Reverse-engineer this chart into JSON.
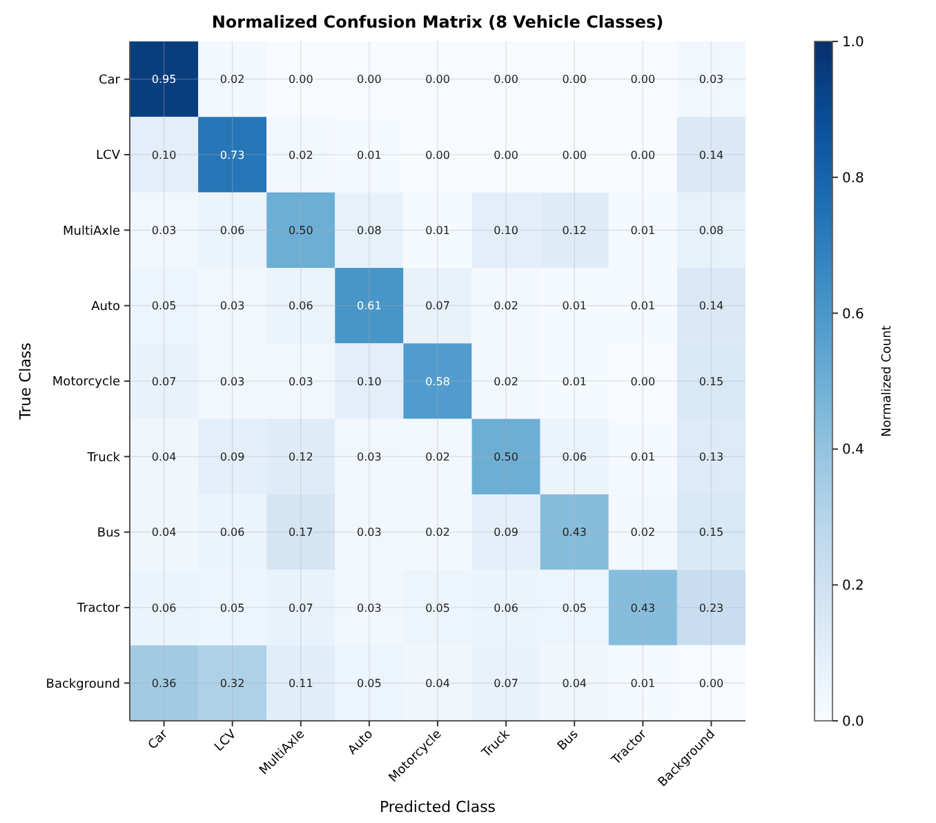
{
  "chart_data": {
    "type": "heatmap",
    "title": "Normalized Confusion Matrix (8 Vehicle Classes)",
    "xlabel": "Predicted Class",
    "ylabel": "True Class",
    "clabel": "Normalized Count",
    "categories": [
      "Car",
      "LCV",
      "MultiAxle",
      "Auto",
      "Motorcycle",
      "Truck",
      "Bus",
      "Tractor",
      "Background"
    ],
    "y_categories": [
      "Car",
      "LCV",
      "MultiAxle",
      "Auto",
      "Motorcycle",
      "Truck",
      "Bus",
      "Tractor",
      "Background"
    ],
    "cells": [
      [
        0.95,
        0.02,
        0.0,
        0.0,
        0.0,
        0.0,
        0.0,
        0.0,
        0.03
      ],
      [
        0.1,
        0.73,
        0.02,
        0.01,
        0.0,
        0.0,
        0.0,
        0.0,
        0.14
      ],
      [
        0.03,
        0.06,
        0.5,
        0.08,
        0.01,
        0.1,
        0.12,
        0.01,
        0.08
      ],
      [
        0.05,
        0.03,
        0.06,
        0.61,
        0.07,
        0.02,
        0.01,
        0.01,
        0.14
      ],
      [
        0.07,
        0.03,
        0.03,
        0.1,
        0.58,
        0.02,
        0.01,
        0.0,
        0.15
      ],
      [
        0.04,
        0.09,
        0.12,
        0.03,
        0.02,
        0.5,
        0.06,
        0.01,
        0.13
      ],
      [
        0.04,
        0.06,
        0.17,
        0.03,
        0.02,
        0.09,
        0.43,
        0.02,
        0.15
      ],
      [
        0.06,
        0.05,
        0.07,
        0.03,
        0.05,
        0.06,
        0.05,
        0.43,
        0.23
      ],
      [
        0.36,
        0.32,
        0.11,
        0.05,
        0.04,
        0.07,
        0.04,
        0.01,
        0.0
      ]
    ],
    "cell_labels": [
      [
        "0.95",
        "0.02",
        "0.00",
        "0.00",
        "0.00",
        "0.00",
        "0.00",
        "0.00",
        "0.03"
      ],
      [
        "0.10",
        "0.73",
        "0.02",
        "0.01",
        "0.00",
        "0.00",
        "0.00",
        "0.00",
        "0.14"
      ],
      [
        "0.03",
        "0.06",
        "0.50",
        "0.08",
        "0.01",
        "0.10",
        "0.12",
        "0.01",
        "0.08"
      ],
      [
        "0.05",
        "0.03",
        "0.06",
        "0.61",
        "0.07",
        "0.02",
        "0.01",
        "0.01",
        "0.14"
      ],
      [
        "0.07",
        "0.03",
        "0.03",
        "0.10",
        "0.58",
        "0.02",
        "0.01",
        "0.00",
        "0.15"
      ],
      [
        "0.04",
        "0.09",
        "0.12",
        "0.03",
        "0.02",
        "0.50",
        "0.06",
        "0.01",
        "0.13"
      ],
      [
        "0.04",
        "0.06",
        "0.17",
        "0.03",
        "0.02",
        "0.09",
        "0.43",
        "0.02",
        "0.15"
      ],
      [
        "0.06",
        "0.05",
        "0.07",
        "0.03",
        "0.05",
        "0.06",
        "0.05",
        "0.43",
        "0.23"
      ],
      [
        "0.36",
        "0.32",
        "0.11",
        "0.05",
        "0.04",
        "0.07",
        "0.04",
        "0.01",
        "0.00"
      ]
    ],
    "grid": true,
    "clim": [
      0.0,
      1.0
    ],
    "cticks": [
      {
        "value": 0,
        "label": "0.0"
      },
      {
        "value": 0.2,
        "label": "0.2"
      },
      {
        "value": 0.4,
        "label": "0.4"
      },
      {
        "value": 0.6,
        "label": "0.6"
      },
      {
        "value": 0.8,
        "label": "0.8"
      },
      {
        "value": 1,
        "label": "1.0"
      }
    ]
  }
}
